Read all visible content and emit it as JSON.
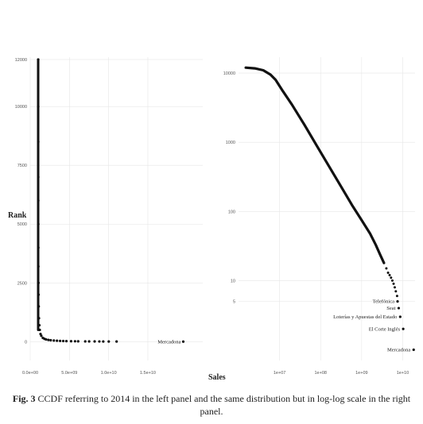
{
  "chart_data": [
    {
      "type": "scatter",
      "panel": "left",
      "xlabel": "Sales",
      "ylabel": "Rank",
      "xlim": [
        0,
        22000000000
      ],
      "ylim": [
        -800,
        12100
      ],
      "xscale": "linear",
      "yscale": "linear",
      "x_ticks": [
        0,
        5000000000,
        10000000000,
        15000000000
      ],
      "x_tick_labels": [
        "0.0e+00",
        "5.0e+09",
        "1.0e+10",
        "1.5e+10"
      ],
      "y_ticks": [
        0,
        2500,
        5000,
        7500,
        10000,
        12000
      ],
      "y_tick_labels": [
        "0",
        "2500",
        "5000",
        "7500",
        "10000",
        "12000"
      ],
      "grid": true,
      "points": [
        [
          5000000,
          12000
        ],
        [
          8000000,
          10000
        ],
        [
          10000000,
          8500
        ],
        [
          12000000,
          7000
        ],
        [
          15000000,
          6000
        ],
        [
          20000000,
          5000
        ],
        [
          25000000,
          4000
        ],
        [
          30000000,
          3200
        ],
        [
          40000000,
          2500
        ],
        [
          50000000,
          2000
        ],
        [
          70000000,
          1500
        ],
        [
          100000000,
          1000
        ],
        [
          150000000,
          700
        ],
        [
          200000000,
          500
        ],
        [
          300000000,
          330
        ],
        [
          400000000,
          250
        ],
        [
          600000000,
          160
        ],
        [
          800000000,
          120
        ],
        [
          1000000000,
          95
        ],
        [
          1300000000,
          75
        ],
        [
          1600000000,
          60
        ],
        [
          2000000000,
          48
        ],
        [
          2400000000,
          40
        ],
        [
          2800000000,
          33
        ],
        [
          3200000000,
          28
        ],
        [
          3600000000,
          24
        ],
        [
          4200000000,
          20
        ],
        [
          4700000000,
          17
        ],
        [
          5100000000,
          14
        ],
        [
          6000000000,
          12
        ],
        [
          6500000000,
          11
        ],
        [
          7200000000,
          10
        ],
        [
          7800000000,
          9
        ],
        [
          8300000000,
          8
        ],
        [
          9000000000,
          7
        ],
        [
          10000000000,
          6
        ],
        [
          18500000000,
          1
        ]
      ],
      "annotations": [
        {
          "label": "Mercadona",
          "x": 18500000000,
          "y": 1
        }
      ]
    },
    {
      "type": "scatter",
      "panel": "right",
      "xlabel": "Sales",
      "ylabel": "",
      "xscale": "log",
      "yscale": "log",
      "xlim": [
        1000000,
        20000000000
      ],
      "ylim": [
        0.7,
        17000
      ],
      "x_ticks": [
        10000000,
        100000000,
        1000000000,
        10000000000
      ],
      "x_tick_labels": [
        "1e+07",
        "1e+08",
        "1e+09",
        "1e+10"
      ],
      "y_ticks": [
        5,
        10,
        100,
        1000,
        10000
      ],
      "y_tick_labels": [
        "5",
        "10",
        "100",
        "1000",
        "10000"
      ],
      "grid": true,
      "curve": [
        [
          1500000,
          12000
        ],
        [
          2500000,
          11700
        ],
        [
          4000000,
          11000
        ],
        [
          6000000,
          9500
        ],
        [
          8000000,
          8000
        ],
        [
          12000000,
          5500
        ],
        [
          20000000,
          3500
        ],
        [
          40000000,
          1800
        ],
        [
          80000000,
          900
        ],
        [
          150000000,
          480
        ],
        [
          300000000,
          240
        ],
        [
          600000000,
          120
        ],
        [
          1000000000,
          75
        ],
        [
          1600000000,
          48
        ],
        [
          2200000000,
          33
        ],
        [
          2800000000,
          24
        ],
        [
          3500000000,
          18
        ]
      ],
      "points": [
        [
          4000000000,
          15
        ],
        [
          4400000000,
          13
        ],
        [
          4800000000,
          12
        ],
        [
          5200000000,
          11
        ],
        [
          5600000000,
          10
        ],
        [
          6000000000,
          9
        ],
        [
          6400000000,
          8
        ],
        [
          6800000000,
          7
        ],
        [
          7300000000,
          6
        ]
      ],
      "annotations": [
        {
          "label": "Telefónica",
          "x": 7500000000,
          "y": 5
        },
        {
          "label": "Seat",
          "x": 8000000000,
          "y": 4
        },
        {
          "label": "Loterías y Apuestas del Estado",
          "x": 8700000000,
          "y": 3
        },
        {
          "label": "El Corte Inglés",
          "x": 10300000000,
          "y": 2
        },
        {
          "label": "Mercadona",
          "x": 18500000000,
          "y": 1
        }
      ]
    }
  ],
  "caption": {
    "figure_label": "Fig. 3",
    "text": " CCDF referring to 2014 in the left panel and the same distribution but in log-log scale in the right panel."
  }
}
